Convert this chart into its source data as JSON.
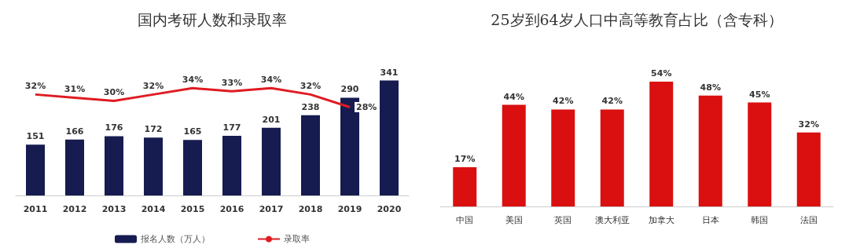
{
  "chart_data": [
    {
      "type": "bar",
      "title": "国内考研人数和录取率",
      "categories": [
        "2011",
        "2012",
        "2013",
        "2014",
        "2015",
        "2016",
        "2017",
        "2018",
        "2019",
        "2020"
      ],
      "series": [
        {
          "name": "报名人数（万人）",
          "color": "#161c50",
          "values": [
            151,
            166,
            176,
            172,
            165,
            177,
            201,
            238,
            290,
            341
          ]
        },
        {
          "name": "录取率",
          "type": "line",
          "axis": "y2",
          "color": "#e01b22",
          "values": [
            32,
            31,
            30,
            32,
            34,
            33,
            34,
            32,
            28,
            null
          ],
          "value_labels": [
            "32%",
            "31%",
            "30%",
            "32%",
            "34%",
            "33%",
            "34%",
            "32%",
            "28%",
            null
          ]
        }
      ],
      "data_labels": true,
      "legend": "bottom",
      "marker": "none"
    },
    {
      "type": "bar",
      "title": "25岁到64岁人口中高等教育占比（含专科）",
      "categories": [
        "中国",
        "美国",
        "英国",
        "澳大利亚",
        "加拿大",
        "日本",
        "韩国",
        "法国"
      ],
      "values": [
        17,
        44,
        42,
        42,
        54,
        48,
        45,
        32
      ],
      "value_labels": [
        "17%",
        "44%",
        "42%",
        "42%",
        "54%",
        "48%",
        "45%",
        "32%"
      ],
      "color": "#d9100f",
      "legend": false
    }
  ]
}
